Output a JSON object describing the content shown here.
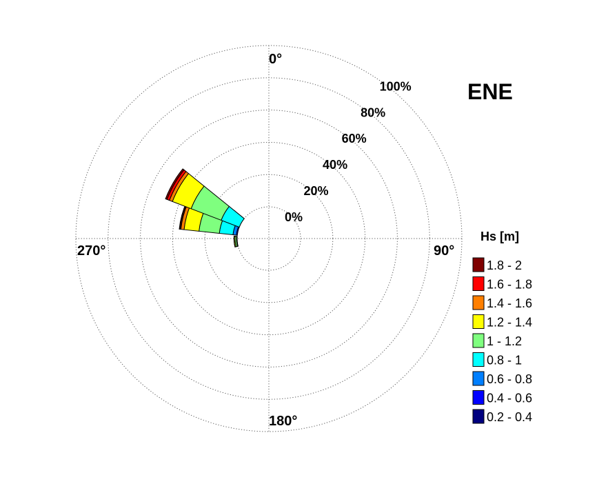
{
  "chart_data": {
    "type": "polar-stacked-bar",
    "title": "ENE",
    "direction_labels": [
      "0°",
      "90°",
      "180°",
      "270°"
    ],
    "radial_ticks": [
      "0%",
      "20%",
      "40%",
      "60%",
      "80%",
      "100%"
    ],
    "legend_title": "Hs [m]",
    "classes": [
      {
        "label": "0.2 - 0.4",
        "color": "#00007f"
      },
      {
        "label": "0.4 - 0.6",
        "color": "#0000ff"
      },
      {
        "label": "0.6 - 0.8",
        "color": "#007fff"
      },
      {
        "label": "0.8 - 1",
        "color": "#00ffff"
      },
      {
        "label": "1 - 1.2",
        "color": "#7fff7f"
      },
      {
        "label": "1.2 - 1.4",
        "color": "#ffff00"
      },
      {
        "label": "1.4 - 1.6",
        "color": "#ff7f00"
      },
      {
        "label": "1.6 - 1.8",
        "color": "#ff0000"
      },
      {
        "label": "1.8 - 2",
        "color": "#7f0000"
      }
    ],
    "sectors": [
      {
        "direction": 300,
        "values": [
          0,
          0,
          0,
          0.6,
          4.3,
          1.4,
          1.2,
          0.4,
          0.2
        ]
      },
      {
        "direction": 285,
        "values": [
          0,
          0.6,
          2.1,
          8.5,
          12.7,
          9.3,
          2.0,
          0.5,
          0.5
        ]
      },
      {
        "direction": 300,
        "values": [
          0,
          0,
          0,
          0,
          0,
          0,
          0,
          0,
          0
        ]
      },
      {
        "direction": 300,
        "values": [
          0,
          0,
          0,
          12.0,
          20.0,
          12.4,
          2.0,
          1.6,
          1.0
        ]
      },
      {
        "direction": 265,
        "values": [
          0,
          0,
          0.4,
          0,
          0.9,
          0.6,
          0,
          0,
          0.1
        ]
      }
    ]
  }
}
